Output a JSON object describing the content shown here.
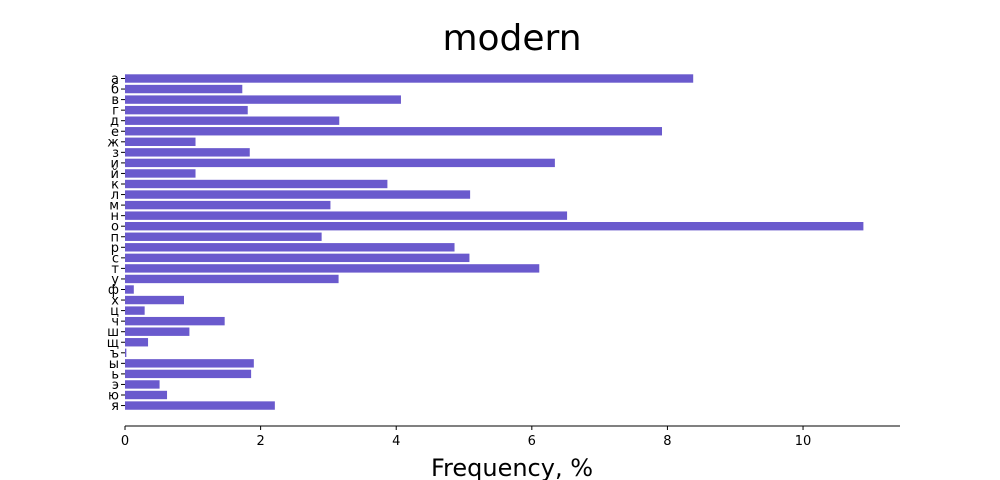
{
  "chart_data": {
    "type": "bar",
    "orientation": "horizontal",
    "title": "modern",
    "xlabel": "Frequency, %",
    "ylabel": "",
    "categories": [
      "а",
      "б",
      "в",
      "г",
      "д",
      "е",
      "ж",
      "з",
      "и",
      "й",
      "к",
      "л",
      "м",
      "н",
      "о",
      "п",
      "р",
      "с",
      "т",
      "у",
      "ф",
      "х",
      "ц",
      "ч",
      "ш",
      "щ",
      "ъ",
      "ы",
      "ь",
      "э",
      "ю",
      "я"
    ],
    "values": [
      8.38,
      1.73,
      4.07,
      1.81,
      3.16,
      7.92,
      1.04,
      1.84,
      6.34,
      1.04,
      3.87,
      5.09,
      3.03,
      6.52,
      10.89,
      2.9,
      4.86,
      5.08,
      6.11,
      3.15,
      0.13,
      0.87,
      0.29,
      1.47,
      0.95,
      0.34,
      0.02,
      1.9,
      1.86,
      0.51,
      0.62,
      2.21
    ],
    "xlim": [
      0,
      11.43
    ],
    "xticks": [
      0,
      2,
      4,
      6,
      8,
      10
    ],
    "grid": false,
    "bar_color": "#6a5acd"
  }
}
